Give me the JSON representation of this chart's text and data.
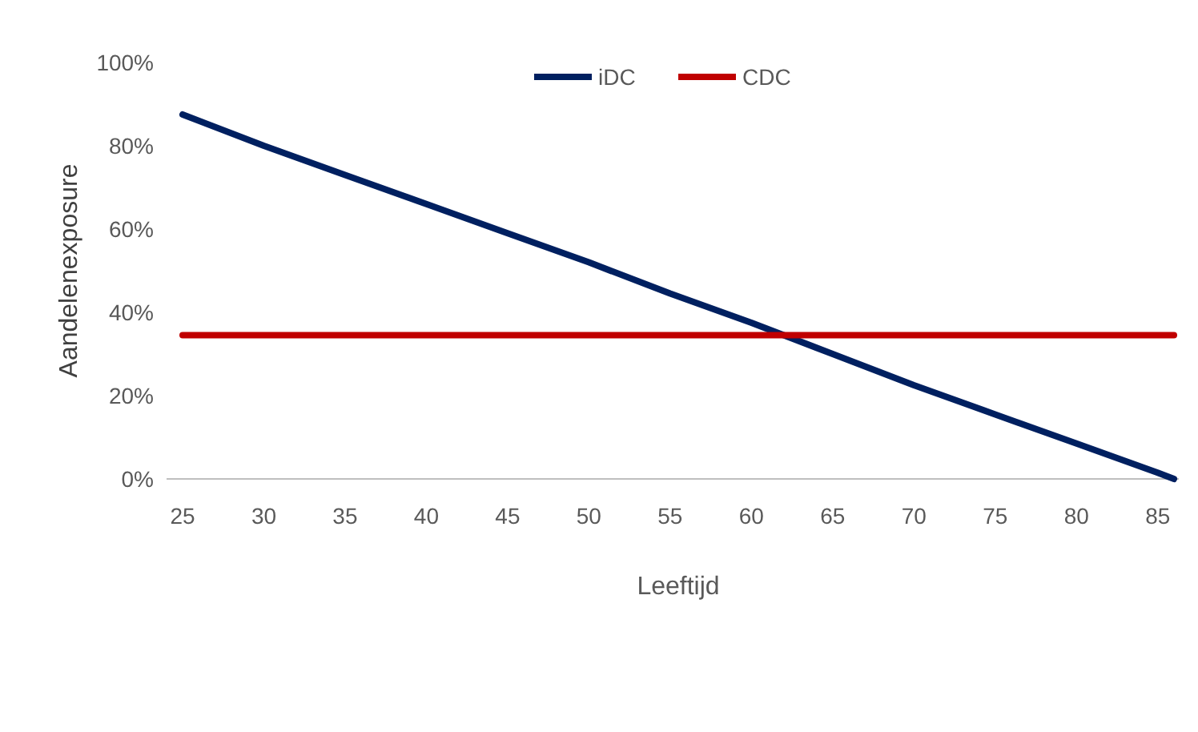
{
  "chart_data": {
    "type": "line",
    "xlabel": "Leeftijd",
    "ylabel": "Aandelenexposure",
    "xlim": [
      25,
      86
    ],
    "xticks": [
      25,
      30,
      35,
      40,
      45,
      50,
      55,
      60,
      65,
      70,
      75,
      80,
      85
    ],
    "ylim": [
      0,
      100
    ],
    "yticks": [
      {
        "value": 0,
        "label": "0%"
      },
      {
        "value": 20,
        "label": "20%"
      },
      {
        "value": 40,
        "label": "40%"
      },
      {
        "value": 60,
        "label": "60%"
      },
      {
        "value": 80,
        "label": "80%"
      },
      {
        "value": 100,
        "label": "100%"
      }
    ],
    "grid": false,
    "legend": "top",
    "line_style": "solid",
    "marker": "none",
    "series": [
      {
        "name": "iDC",
        "color": "#002060",
        "x": [
          25,
          30,
          35,
          40,
          45,
          50,
          55,
          60,
          65,
          70,
          75,
          80,
          85,
          86
        ],
        "values": [
          87.5,
          80,
          73,
          66,
          59,
          52,
          44.5,
          37.5,
          30,
          22.5,
          15.5,
          8.5,
          1.5,
          0
        ]
      },
      {
        "name": "CDC",
        "color": "#c00000",
        "x": [
          25,
          86
        ],
        "values": [
          34.5,
          34.5
        ]
      }
    ]
  }
}
